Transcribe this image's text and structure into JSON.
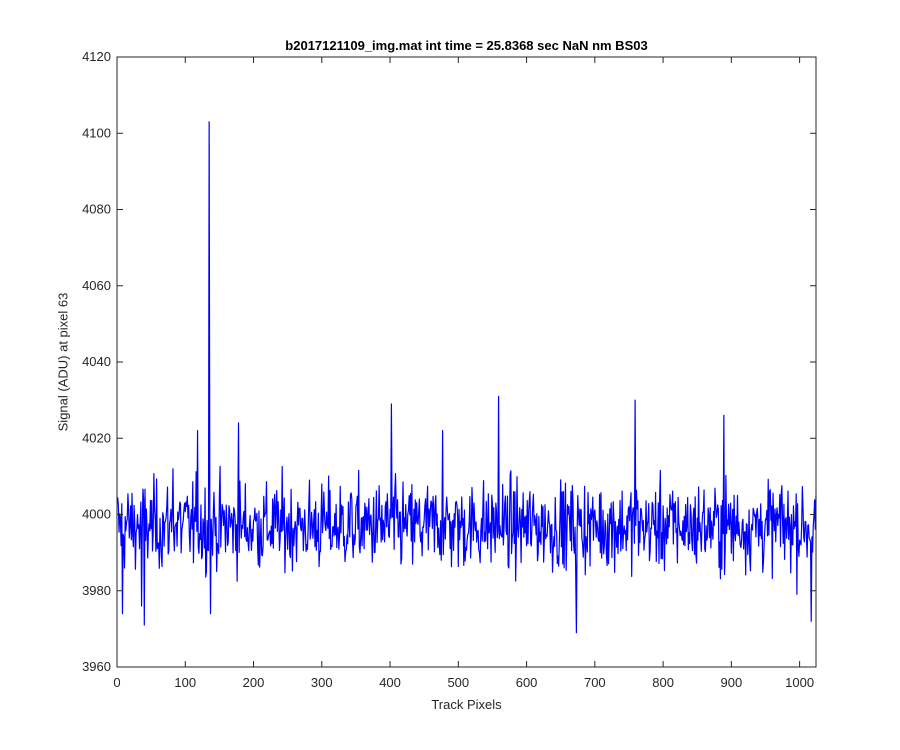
{
  "chart_data": {
    "type": "line",
    "title": "b2017121109_img.mat int time = 25.8368 sec  NaN nm BS03",
    "xlabel": "Track Pixels",
    "ylabel": "Signal (ADU) at pixel 63",
    "xlim": [
      0,
      1024
    ],
    "ylim": [
      3960,
      4120
    ],
    "xticks": [
      0,
      100,
      200,
      300,
      400,
      500,
      600,
      700,
      800,
      900,
      1000
    ],
    "yticks": [
      3960,
      3980,
      4000,
      4020,
      4040,
      4060,
      4080,
      4100,
      4120
    ],
    "grid": false,
    "series": [
      {
        "color": "#0000ff",
        "x_start": 1,
        "x_step": 1,
        "noise_model": "approx. 3997 ± 8 ADU",
        "notable_points": [
          {
            "x": 8,
            "y": 3974
          },
          {
            "x": 36,
            "y": 3976
          },
          {
            "x": 40,
            "y": 3971
          },
          {
            "x": 82,
            "y": 4012
          },
          {
            "x": 118,
            "y": 4022
          },
          {
            "x": 135,
            "y": 4103
          },
          {
            "x": 137,
            "y": 3974
          },
          {
            "x": 178,
            "y": 4024
          },
          {
            "x": 402,
            "y": 4029
          },
          {
            "x": 477,
            "y": 4022
          },
          {
            "x": 559,
            "y": 4031
          },
          {
            "x": 673,
            "y": 3969
          },
          {
            "x": 759,
            "y": 4030
          },
          {
            "x": 889,
            "y": 4026
          },
          {
            "x": 1017,
            "y": 3972
          }
        ]
      }
    ]
  }
}
